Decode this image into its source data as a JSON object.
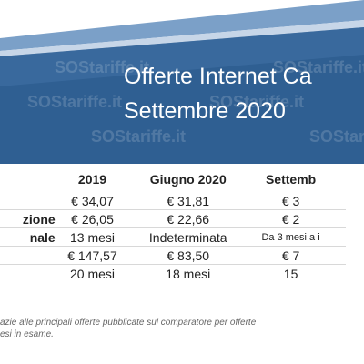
{
  "header": {
    "title_line1": "Offerte Internet Ca",
    "title_line2": "Settembre 2020",
    "watermark": "SOStariffe.it",
    "colors": {
      "band_light": "#6c93bf",
      "band_dark": "#284f7a",
      "band_mid": "#3d6ea3"
    }
  },
  "table": {
    "columns": [
      "",
      "2019",
      "Giugno 2020",
      "Settemb"
    ],
    "rows": [
      [
        "",
        "€ 34,07",
        "€ 31,81",
        "€ 3"
      ],
      [
        "zione",
        "€ 26,05",
        "€ 22,66",
        "€ 2"
      ],
      [
        "nale",
        "13 mesi",
        "Indeterminata",
        "Da 3 mesi a i"
      ],
      [
        "",
        "€ 147,57",
        "€ 83,50",
        "€ 7"
      ],
      [
        "",
        "20 mesi",
        "18 mesi",
        "15"
      ]
    ]
  },
  "footnote": {
    "line1": "azie alle principali offerte pubblicate sul comparatore per offerte",
    "line2": "esi in esame."
  }
}
